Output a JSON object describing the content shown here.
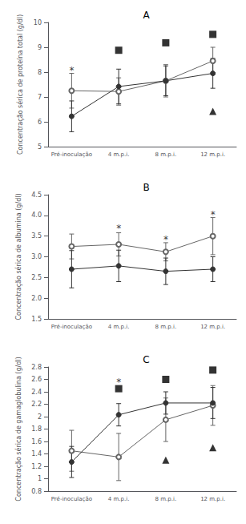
{
  "chart_data": [
    {
      "type": "line",
      "title": "A",
      "ylabel": "Concentração sérica de proteína total (g/dl)",
      "categories": [
        "Pré-inoculação",
        "4 m.p.i.",
        "8 m.p.i.",
        "12 m.p.i."
      ],
      "ylim": [
        5,
        10
      ],
      "yticks": [
        5,
        6,
        7,
        8,
        9,
        10
      ],
      "grid": false,
      "series": [
        {
          "type": "line",
          "color": "#666666",
          "marker": "open circle",
          "values": [
            7.25,
            7.22,
            7.65,
            8.45
          ],
          "errors": [
            0.7,
            0.55,
            0.65,
            0.55
          ]
        },
        {
          "type": "line",
          "color": "#333333",
          "marker": "circle",
          "values": [
            6.22,
            7.42,
            7.65,
            7.95
          ],
          "errors": [
            0.62,
            0.7,
            0.6,
            0.6
          ]
        },
        {
          "type": "scatter",
          "color": "#000000",
          "marker": "square",
          "values": [
            null,
            8.88,
            9.18,
            9.52
          ]
        },
        {
          "type": "scatter",
          "color": "#000000",
          "marker": "triangle",
          "values": [
            null,
            null,
            null,
            6.42
          ]
        }
      ],
      "annotations": [
        {
          "text": "*",
          "x": "Pré-inoculação",
          "y": 8.05
        }
      ]
    },
    {
      "type": "line",
      "title": "B",
      "ylabel": "Concentração sérica de albumina (g/dl)",
      "categories": [
        "Pré-inoculação",
        "4 m.p.i.",
        "8 m.p.i.",
        "12 m.p.i."
      ],
      "ylim": [
        1.5,
        4.5
      ],
      "yticks": [
        1.5,
        {
          "value": 2,
          "label": "2.0"
        },
        2.5,
        {
          "value": 3,
          "label": "3.0"
        },
        3.5,
        {
          "value": 4,
          "label": "4.0"
        },
        4.5
      ],
      "grid": false,
      "series": [
        {
          "type": "line",
          "color": "#666666",
          "marker": "open circle",
          "values": [
            3.25,
            3.3,
            3.12,
            3.5
          ],
          "errors": [
            0.3,
            0.28,
            0.22,
            0.45
          ]
        },
        {
          "type": "line",
          "color": "#333333",
          "marker": "circle",
          "values": [
            2.7,
            2.78,
            2.65,
            2.7
          ],
          "errors": [
            0.45,
            0.38,
            0.32,
            0.3
          ]
        }
      ],
      "annotations": [
        {
          "text": "*",
          "x": "4 m.p.i.",
          "y": 3.68
        },
        {
          "text": "*",
          "x": "8 m.p.i.",
          "y": 3.42
        },
        {
          "text": "*",
          "x": "12 m.p.i.",
          "y": 4.02
        }
      ]
    },
    {
      "type": "line",
      "title": "C",
      "ylabel": "Concentração sérica de gamaglobulina (g/dl)",
      "categories": [
        "Pré-inoculação",
        "4 m.p.i.",
        "8 m.p.i.",
        "12 m.p.i."
      ],
      "ylim": [
        0.8,
        2.8
      ],
      "yticks": [
        0.8,
        1,
        1.2,
        1.4,
        1.6,
        1.8,
        2,
        2.2,
        2.4,
        2.6,
        2.8
      ],
      "grid": false,
      "series": [
        {
          "type": "line",
          "color": "#666666",
          "marker": "open circle",
          "values": [
            1.45,
            1.35,
            1.95,
            2.18
          ],
          "errors": [
            0.33,
            0.38,
            0.35,
            0.32
          ]
        },
        {
          "type": "line",
          "color": "#333333",
          "marker": "circle",
          "values": [
            1.27,
            2.03,
            2.22,
            2.22
          ],
          "errors": [
            0.25,
            0.18,
            0.18,
            0.25
          ]
        },
        {
          "type": "scatter",
          "color": "#000000",
          "marker": "square",
          "values": [
            null,
            2.45,
            2.6,
            2.75
          ]
        },
        {
          "type": "scatter",
          "color": "#000000",
          "marker": "triangle",
          "values": [
            null,
            null,
            1.3,
            1.5
          ]
        }
      ],
      "annotations": [
        {
          "text": "*",
          "x": "4 m.p.i.",
          "y": 2.55
        }
      ]
    }
  ]
}
